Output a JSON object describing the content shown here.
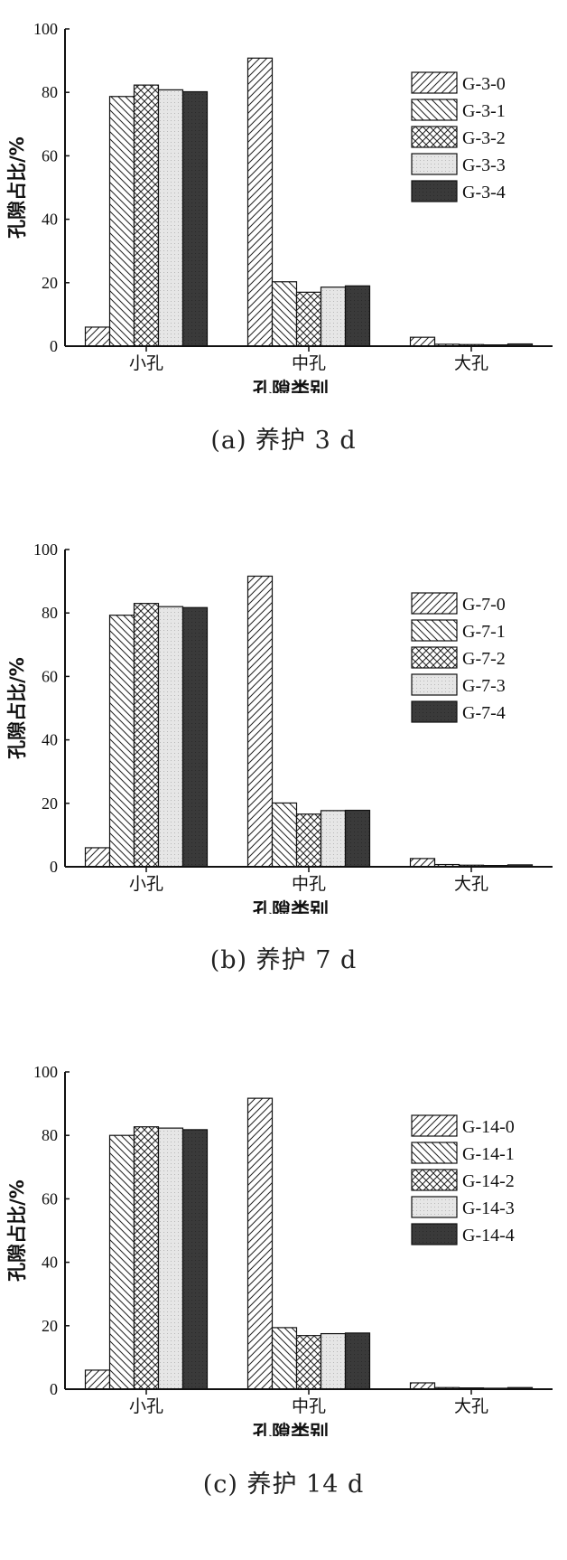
{
  "figure": {
    "panels": [
      {
        "caption": "(a) 养护 3 d"
      },
      {
        "caption": "(b) 养护 7 d"
      },
      {
        "caption": "(c) 养护 14 d"
      }
    ]
  },
  "pattern_styles": [
    "diag-up",
    "diag-down",
    "crosshatch",
    "dotted-light",
    "dark-solid"
  ],
  "colors": {
    "axis": "#111111",
    "dark_bar": "#3a3a3a",
    "light_bar": "#e6e6e6"
  },
  "chart_data": [
    {
      "type": "bar",
      "categories": [
        "小孔",
        "中孔",
        "大孔"
      ],
      "xlabel": "孔隙类别",
      "ylabel": "孔隙占比/%",
      "ylim": [
        0,
        100
      ],
      "yticks": [
        0,
        20,
        40,
        60,
        80,
        100
      ],
      "legend_position": "top-right",
      "series": [
        {
          "name": "G-3-0",
          "values": [
            6.0,
            90.8,
            2.8
          ]
        },
        {
          "name": "G-3-1",
          "values": [
            78.7,
            20.3,
            0.6
          ]
        },
        {
          "name": "G-3-2",
          "values": [
            82.3,
            17.0,
            0.5
          ]
        },
        {
          "name": "G-3-3",
          "values": [
            80.8,
            18.6,
            0.4
          ]
        },
        {
          "name": "G-3-4",
          "values": [
            80.2,
            19.0,
            0.7
          ]
        }
      ]
    },
    {
      "type": "bar",
      "categories": [
        "小孔",
        "中孔",
        "大孔"
      ],
      "xlabel": "孔隙类别",
      "ylabel": "孔隙占比/%",
      "ylim": [
        0,
        100
      ],
      "yticks": [
        0,
        20,
        40,
        60,
        80,
        100
      ],
      "legend_position": "top-right",
      "series": [
        {
          "name": "G-7-0",
          "values": [
            6.0,
            91.6,
            2.6
          ]
        },
        {
          "name": "G-7-1",
          "values": [
            79.3,
            20.1,
            0.7
          ]
        },
        {
          "name": "G-7-2",
          "values": [
            83.0,
            16.6,
            0.5
          ]
        },
        {
          "name": "G-7-3",
          "values": [
            82.0,
            17.7,
            0.4
          ]
        },
        {
          "name": "G-7-4",
          "values": [
            81.7,
            17.8,
            0.6
          ]
        }
      ]
    },
    {
      "type": "bar",
      "categories": [
        "小孔",
        "中孔",
        "大孔"
      ],
      "xlabel": "孔隙类别",
      "ylabel": "孔隙占比/%",
      "ylim": [
        0,
        100
      ],
      "yticks": [
        0,
        20,
        40,
        60,
        80,
        100
      ],
      "legend_position": "top-right",
      "series": [
        {
          "name": "G-14-0",
          "values": [
            6.0,
            91.7,
            2.0
          ]
        },
        {
          "name": "G-14-1",
          "values": [
            80.0,
            19.4,
            0.5
          ]
        },
        {
          "name": "G-14-2",
          "values": [
            82.7,
            16.9,
            0.4
          ]
        },
        {
          "name": "G-14-3",
          "values": [
            82.3,
            17.5,
            0.3
          ]
        },
        {
          "name": "G-14-4",
          "values": [
            81.8,
            17.7,
            0.5
          ]
        }
      ]
    }
  ]
}
